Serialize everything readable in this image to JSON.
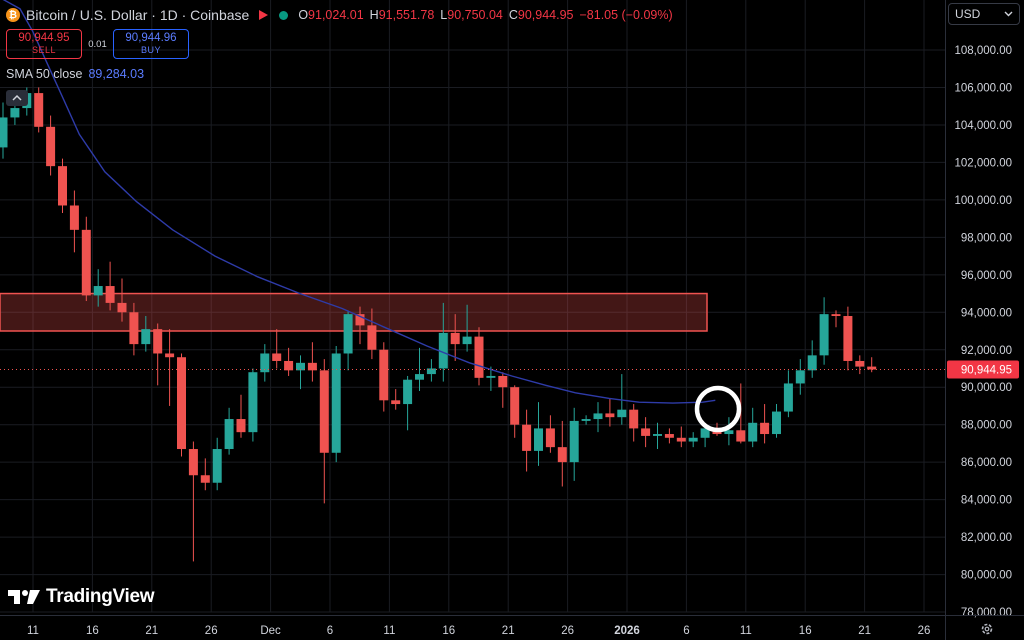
{
  "header": {
    "coin_glyph": "₿",
    "symbol_title": "Bitcoin / U.S. Dollar · 1D · Coinbase",
    "ohlc": [
      {
        "key": "O",
        "value": "91,024.01"
      },
      {
        "key": "H",
        "value": "91,551.78"
      },
      {
        "key": "L",
        "value": "90,750.04"
      },
      {
        "key": "C",
        "value": "90,944.95"
      }
    ],
    "change": "−81.05 (−0.09%)"
  },
  "trade": {
    "sell_price": "90,944.95",
    "sell_label": "SELL",
    "spread": "0.01",
    "buy_price": "90,944.96",
    "buy_label": "BUY"
  },
  "indicator": {
    "label": "SMA 50 close",
    "value": "89,284.03"
  },
  "currency": "USD",
  "logo_text": "TradingView",
  "current_price_label": "90,944.95",
  "colors": {
    "up": "#26a69a",
    "down": "#ef5350",
    "sma": "#2e3ba8",
    "zone": "#ef5350",
    "badge": "#f23645"
  },
  "chart_data": {
    "type": "candlestick",
    "price_axis": [
      "108,000.00",
      "106,000.00",
      "104,000.00",
      "102,000.00",
      "100,000.00",
      "98,000.00",
      "96,000.00",
      "94,000.00",
      "92,000.00",
      "90,000.00",
      "88,000.00",
      "86,000.00",
      "84,000.00",
      "82,000.00",
      "80,000.00",
      "78,000.00"
    ],
    "time_axis": [
      "11",
      "16",
      "21",
      "26",
      "Dec",
      "6",
      "11",
      "16",
      "21",
      "26",
      "2026",
      "6",
      "11",
      "16",
      "21",
      "26"
    ],
    "ylim": [
      77500,
      109500
    ],
    "current_price": 90944.95,
    "resistance_zone": [
      93000,
      95000
    ],
    "candles": [
      [
        102800,
        105200,
        102200,
        104400
      ],
      [
        104400,
        105500,
        104000,
        104900
      ],
      [
        104900,
        106000,
        104500,
        105700
      ],
      [
        105700,
        106000,
        103600,
        103900
      ],
      [
        103900,
        104500,
        101300,
        101800
      ],
      [
        101800,
        102200,
        99300,
        99700
      ],
      [
        99700,
        100500,
        97200,
        98400
      ],
      [
        98400,
        99100,
        94600,
        94900
      ],
      [
        94900,
        96300,
        94300,
        95400
      ],
      [
        95400,
        96700,
        94100,
        94500
      ],
      [
        94500,
        95800,
        93500,
        94000
      ],
      [
        94000,
        94500,
        91700,
        92300
      ],
      [
        92300,
        93800,
        91900,
        93100
      ],
      [
        93100,
        93400,
        90100,
        91800
      ],
      [
        91800,
        93100,
        89000,
        91600
      ],
      [
        91600,
        91800,
        86300,
        86700
      ],
      [
        86700,
        87100,
        80700,
        85300
      ],
      [
        85300,
        86200,
        84500,
        84900
      ],
      [
        84900,
        87300,
        84500,
        86700
      ],
      [
        86700,
        88900,
        86400,
        88300
      ],
      [
        88300,
        89600,
        87300,
        87600
      ],
      [
        87600,
        91000,
        87100,
        90800
      ],
      [
        90800,
        92300,
        90300,
        91800
      ],
      [
        91800,
        93100,
        91000,
        91400
      ],
      [
        91400,
        92100,
        90600,
        90900
      ],
      [
        90900,
        91700,
        89900,
        91300
      ],
      [
        91300,
        92400,
        90300,
        90900
      ],
      [
        90900,
        91500,
        83800,
        86500
      ],
      [
        86500,
        92200,
        86000,
        91800
      ],
      [
        91800,
        94100,
        90900,
        93900
      ],
      [
        93900,
        94300,
        92300,
        93300
      ],
      [
        93300,
        94200,
        91500,
        92000
      ],
      [
        92000,
        92400,
        88700,
        89300
      ],
      [
        89300,
        89900,
        88800,
        89100
      ],
      [
        89100,
        90600,
        87700,
        90400
      ],
      [
        90400,
        92100,
        89800,
        90700
      ],
      [
        90700,
        91500,
        90300,
        91000
      ],
      [
        91000,
        94500,
        90300,
        92900
      ],
      [
        92900,
        93900,
        91400,
        92300
      ],
      [
        92300,
        94400,
        91900,
        92700
      ],
      [
        92700,
        93200,
        90100,
        90500
      ],
      [
        90500,
        91100,
        89800,
        90600
      ],
      [
        90600,
        90800,
        88900,
        90000
      ],
      [
        90000,
        90100,
        87300,
        88000
      ],
      [
        88000,
        88800,
        85500,
        86600
      ],
      [
        86600,
        89200,
        85800,
        87800
      ],
      [
        87800,
        88500,
        86500,
        86800
      ],
      [
        86800,
        88200,
        84700,
        86000
      ],
      [
        86000,
        88900,
        85000,
        88200
      ],
      [
        88200,
        88500,
        88000,
        88300
      ],
      [
        88300,
        89200,
        87600,
        88600
      ],
      [
        88600,
        89400,
        87900,
        88400
      ],
      [
        88400,
        90700,
        88000,
        88800
      ],
      [
        88800,
        89100,
        87100,
        87800
      ],
      [
        87800,
        88400,
        86800,
        87400
      ],
      [
        87400,
        88100,
        86700,
        87500
      ],
      [
        87500,
        87800,
        87000,
        87300
      ],
      [
        87300,
        87900,
        86800,
        87100
      ],
      [
        87100,
        87600,
        86800,
        87300
      ],
      [
        87300,
        88000,
        86800,
        87800
      ],
      [
        87800,
        88100,
        87400,
        87500
      ],
      [
        87500,
        88400,
        86900,
        87700
      ],
      [
        87700,
        90200,
        87000,
        87100
      ],
      [
        87100,
        88900,
        86800,
        88100
      ],
      [
        88100,
        89100,
        87000,
        87500
      ],
      [
        87500,
        89100,
        87300,
        88700
      ],
      [
        88700,
        90900,
        88400,
        90200
      ],
      [
        90200,
        91500,
        89600,
        90900
      ],
      [
        90900,
        92500,
        90500,
        91700
      ],
      [
        91700,
        94800,
        91200,
        93900
      ],
      [
        93900,
        94100,
        93200,
        93800
      ],
      [
        93800,
        94300,
        90900,
        91400
      ],
      [
        91400,
        91700,
        90700,
        91100
      ],
      [
        91100,
        91600,
        90800,
        90944.95
      ]
    ],
    "sma_50": [
      [
        0,
        110700
      ],
      [
        8,
        110200
      ],
      [
        14,
        109000
      ],
      [
        20,
        107500
      ],
      [
        28,
        105500
      ],
      [
        36,
        103500
      ],
      [
        48,
        101500
      ],
      [
        63,
        99900
      ],
      [
        80,
        98400
      ],
      [
        100,
        97000
      ],
      [
        120,
        95900
      ],
      [
        140,
        95000
      ],
      [
        160,
        94200
      ],
      [
        180,
        93200
      ],
      [
        200,
        92200
      ],
      [
        220,
        91300
      ],
      [
        240,
        90600
      ],
      [
        256,
        90100
      ],
      [
        270,
        89700
      ],
      [
        286,
        89400
      ],
      [
        300,
        89200
      ],
      [
        316,
        89150
      ],
      [
        330,
        89200
      ],
      [
        336,
        89300
      ]
    ]
  }
}
